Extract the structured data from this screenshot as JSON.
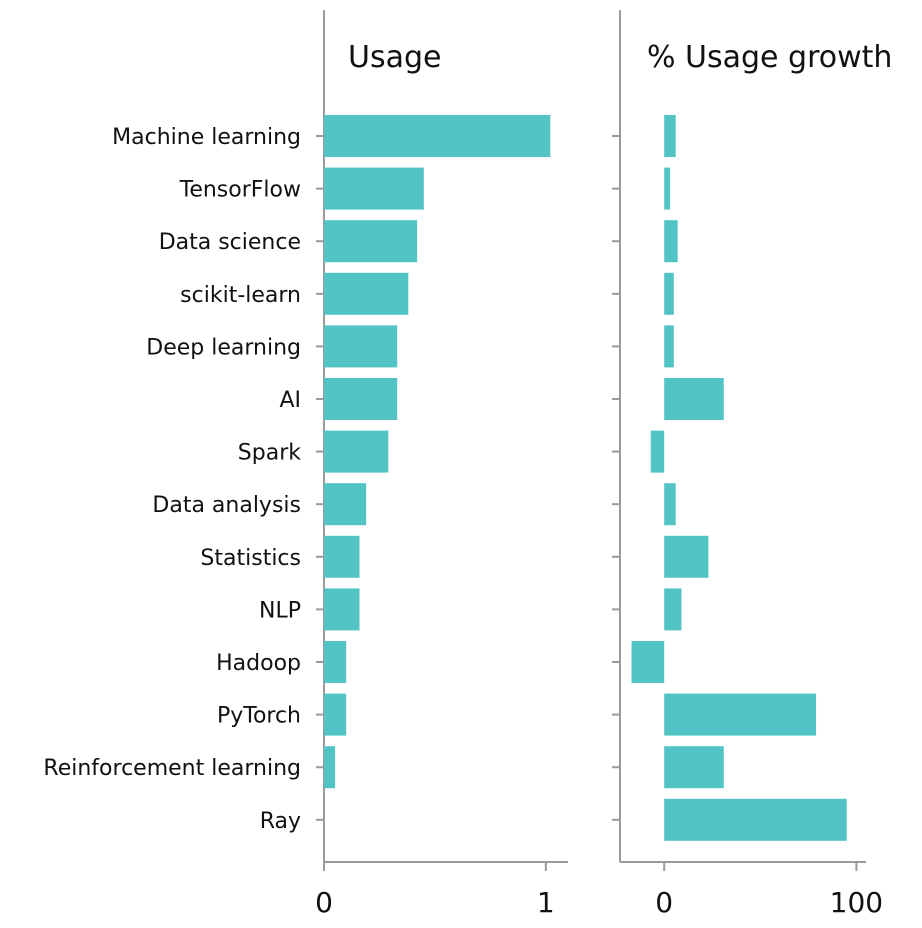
{
  "chart_data": [
    {
      "type": "bar",
      "orientation": "horizontal",
      "title": "Usage",
      "categories": [
        "Machine learning",
        "TensorFlow",
        "Data science",
        "scikit-learn",
        "Deep learning",
        "AI",
        "Spark",
        "Data analysis",
        "Statistics",
        "NLP",
        "Hadoop",
        "PyTorch",
        "Reinforcement learning",
        "Ray"
      ],
      "values": [
        1.02,
        0.45,
        0.42,
        0.38,
        0.33,
        0.33,
        0.29,
        0.19,
        0.16,
        0.16,
        0.1,
        0.1,
        0.05,
        0.0
      ],
      "xlim": [
        0,
        1.1
      ],
      "xticks": [
        0,
        1
      ],
      "xtick_labels": [
        "0",
        "1"
      ],
      "color": "#52c4c6"
    },
    {
      "type": "bar",
      "orientation": "horizontal",
      "title": "% Usage growth",
      "categories": [
        "Machine learning",
        "TensorFlow",
        "Data science",
        "scikit-learn",
        "Deep learning",
        "AI",
        "Spark",
        "Data analysis",
        "Statistics",
        "NLP",
        "Hadoop",
        "PyTorch",
        "Reinforcement learning",
        "Ray"
      ],
      "values": [
        6,
        3,
        7,
        5,
        5,
        31,
        -7,
        6,
        23,
        9,
        -17,
        79,
        31,
        95
      ],
      "xlim": [
        -23,
        105
      ],
      "xticks": [
        0,
        100
      ],
      "xtick_labels": [
        "0",
        "100"
      ],
      "color": "#52c4c6"
    }
  ]
}
